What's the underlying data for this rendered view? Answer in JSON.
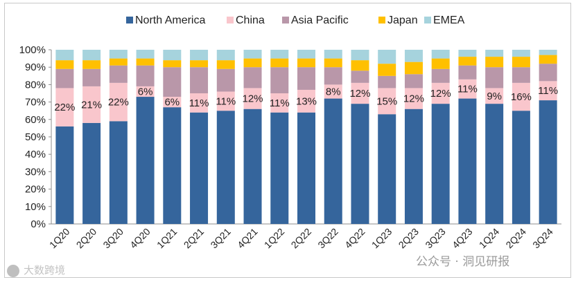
{
  "chart_data": {
    "type": "bar",
    "stacked": true,
    "normalized": true,
    "categories": [
      "1Q20",
      "2Q20",
      "3Q20",
      "4Q20",
      "1Q21",
      "2Q21",
      "3Q21",
      "4Q21",
      "1Q22",
      "2Q22",
      "3Q22",
      "4Q22",
      "1Q23",
      "2Q23",
      "3Q23",
      "4Q23",
      "1Q24",
      "2Q24",
      "3Q24"
    ],
    "series": [
      {
        "name": "North America",
        "color": "#35659c",
        "values": [
          56,
          58,
          59,
          73,
          67,
          64,
          65,
          66,
          64,
          64,
          72,
          69,
          63,
          66,
          69,
          72,
          69,
          65,
          71
        ]
      },
      {
        "name": "China",
        "color": "#f9c6cc",
        "values": [
          22,
          21,
          22,
          6,
          6,
          11,
          11,
          12,
          11,
          13,
          8,
          12,
          15,
          12,
          12,
          11,
          9,
          16,
          11
        ]
      },
      {
        "name": "Asia Pacific",
        "color": "#b997a9",
        "values": [
          11,
          10,
          10,
          12,
          17,
          15,
          13,
          12,
          15,
          13,
          10,
          7,
          7,
          8,
          8,
          8,
          12,
          9,
          10
        ]
      },
      {
        "name": "Japan",
        "color": "#ffc000",
        "values": [
          5,
          5,
          4,
          4,
          4,
          4,
          5,
          5,
          5,
          5,
          5,
          6,
          7,
          7,
          6,
          5,
          6,
          6,
          5
        ]
      },
      {
        "name": "EMEA",
        "color": "#a6d3dd",
        "values": [
          6,
          6,
          5,
          5,
          6,
          6,
          6,
          5,
          5,
          5,
          5,
          6,
          8,
          7,
          5,
          4,
          4,
          4,
          3
        ]
      }
    ],
    "data_labels": {
      "series": "China",
      "values": [
        "22%",
        "21%",
        "22%",
        "6%",
        "6%",
        "11%",
        "11%",
        "12%",
        "11%",
        "13%",
        "8%",
        "12%",
        "15%",
        "12%",
        "12%",
        "11%",
        "9%",
        "16%",
        "11%"
      ]
    },
    "y_ticks": [
      "0%",
      "10%",
      "20%",
      "30%",
      "40%",
      "50%",
      "60%",
      "70%",
      "80%",
      "90%",
      "100%"
    ],
    "ylim": [
      0,
      100
    ],
    "legend_position": "top",
    "title": "",
    "xlabel": "",
    "ylabel": ""
  },
  "watermarks": {
    "left": "大数跨境",
    "right": "公众号 · 洞见研报"
  }
}
